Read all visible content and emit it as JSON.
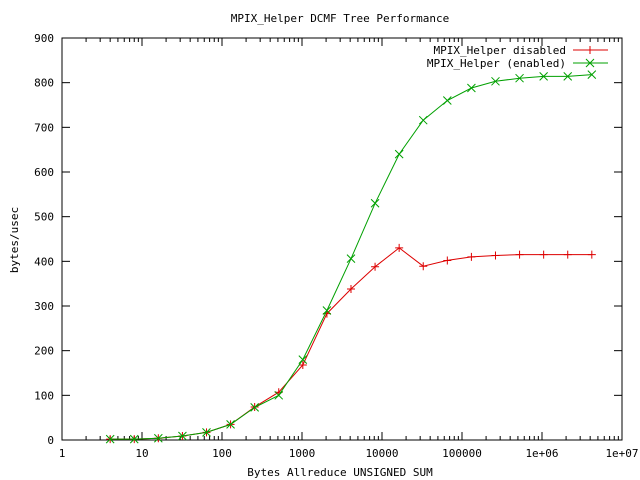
{
  "chart_data": {
    "type": "line",
    "title": "MPIX_Helper DCMF Tree Performance",
    "xlabel": "Bytes Allreduce UNSIGNED SUM",
    "ylabel": "bytes/usec",
    "xscale": "log",
    "xlim": [
      1,
      10000000
    ],
    "ylim": [
      0,
      900
    ],
    "x_ticks": [
      1,
      10,
      100,
      1000,
      10000,
      100000,
      1000000,
      10000000
    ],
    "x_tick_labels": [
      "1",
      "10",
      "100",
      "1000",
      "10000",
      "100000",
      "1e+06",
      "1e+07"
    ],
    "y_ticks": [
      0,
      100,
      200,
      300,
      400,
      500,
      600,
      700,
      800,
      900
    ],
    "y_tick_labels": [
      "0",
      "100",
      "200",
      "300",
      "400",
      "500",
      "600",
      "700",
      "800",
      "900"
    ],
    "grid": false,
    "legend_position": "top-right",
    "x": [
      4,
      8,
      16,
      32,
      64,
      128,
      256,
      512,
      1024,
      2048,
      4096,
      8192,
      16384,
      32768,
      65536,
      131072,
      262144,
      524288,
      1048576,
      2097152,
      4194304
    ],
    "series": [
      {
        "name": "MPIX_Helper disabled",
        "color": "#dd0000",
        "marker": "plus",
        "values": [
          2,
          2,
          4,
          9,
          17,
          35,
          74,
          107,
          168,
          283,
          338,
          388,
          430,
          389,
          402,
          410,
          413,
          415,
          415,
          415,
          415
        ]
      },
      {
        "name": "MPIX_Helper (enabled)",
        "color": "#00a000",
        "marker": "cross",
        "values": [
          2,
          2,
          4,
          9,
          17,
          35,
          73,
          100,
          180,
          290,
          406,
          530,
          640,
          716,
          760,
          788,
          803,
          810,
          814,
          814,
          818
        ]
      }
    ]
  }
}
